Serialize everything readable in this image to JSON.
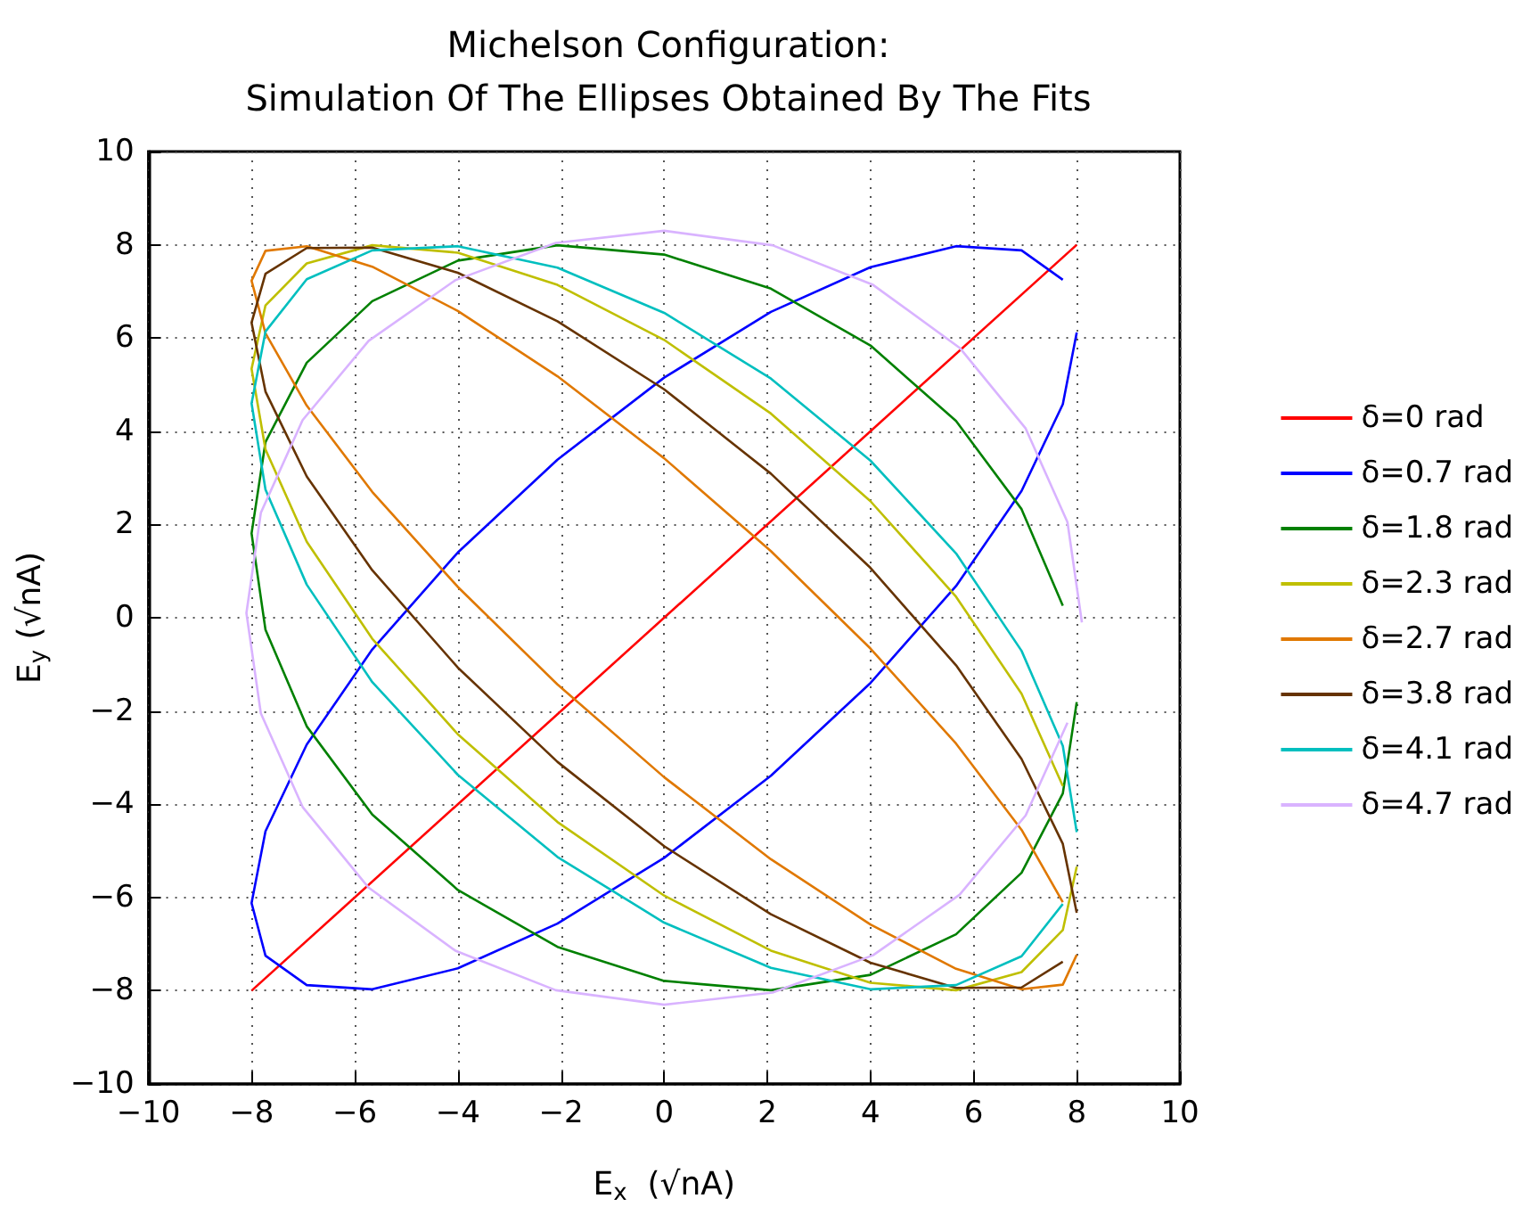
{
  "chart_data": {
    "type": "line",
    "title": "Michelson Configuration:\nSimulation Of The Ellipses Obtained By The Fits",
    "xlabel": "E$_{x}$  (√nA)",
    "ylabel": "E$_{y}$ (√nA)",
    "xlim": [
      -10,
      10
    ],
    "ylim": [
      -10,
      10
    ],
    "xticks": [
      -10,
      -8,
      -6,
      -4,
      -2,
      0,
      2,
      4,
      6,
      8,
      10
    ],
    "yticks": [
      -10,
      -8,
      -6,
      -4,
      -2,
      0,
      2,
      4,
      6,
      8,
      10
    ],
    "grid": true,
    "legend": "right",
    "marker": "none",
    "line_style": "solid",
    "x": [
      8,
      7.73,
      6.93,
      5.66,
      4,
      2.07,
      0,
      -2.07,
      -4,
      -5.66,
      -6.93,
      -7.73,
      -8,
      -7.73,
      -6.93,
      -5.66,
      -4,
      -2.07,
      0,
      2.07,
      4,
      5.66,
      6.93,
      7.73
    ],
    "series": [
      {
        "name": "δ=0 rad",
        "color": "#ff0000",
        "x": [
          -8,
          8
        ],
        "values": [
          -8,
          8
        ]
      },
      {
        "name": "δ=0.7 rad",
        "color": "#0000ff",
        "values": [
          6.12,
          4.58,
          2.72,
          0.68,
          -1.4,
          -3.39,
          -5.15,
          -6.56,
          -7.52,
          -7.97,
          -7.88,
          -7.25,
          -6.12,
          -4.58,
          -2.72,
          -0.68,
          1.4,
          3.39,
          5.15,
          6.56,
          7.52,
          7.97,
          7.88,
          7.25
        ]
      },
      {
        "name": "δ=1.8 rad",
        "color": "#008000",
        "values": [
          -1.81,
          -3.77,
          -5.47,
          -6.79,
          -7.66,
          -7.99,
          -7.79,
          -7.06,
          -5.84,
          -4.22,
          -2.33,
          -0.26,
          1.81,
          3.77,
          5.47,
          6.79,
          7.66,
          7.99,
          7.79,
          7.06,
          5.84,
          4.22,
          2.33,
          0.26
        ]
      },
      {
        "name": "δ=2.3 rad",
        "color": "#bfbf00",
        "values": [
          -5.34,
          -6.7,
          -7.6,
          -7.99,
          -7.83,
          -7.14,
          -5.96,
          -4.38,
          -2.5,
          -0.45,
          1.63,
          3.61,
          5.34,
          6.7,
          7.6,
          7.99,
          7.83,
          7.14,
          5.96,
          4.38,
          2.5,
          0.45,
          -1.63,
          -3.61
        ]
      },
      {
        "name": "δ=2.7 rad",
        "color": "#e07800",
        "values": [
          -7.23,
          -7.87,
          -7.97,
          -7.53,
          -6.58,
          -5.18,
          -3.42,
          -1.43,
          0.66,
          2.7,
          4.55,
          6.1,
          7.23,
          7.87,
          7.97,
          7.53,
          6.58,
          5.18,
          3.42,
          1.43,
          -0.66,
          -2.7,
          -4.55,
          -6.1
        ]
      },
      {
        "name": "δ=3.8 rad",
        "color": "#663300",
        "values": [
          -6.33,
          -4.85,
          -3.03,
          -1.02,
          1.07,
          3.09,
          4.9,
          6.36,
          7.4,
          7.94,
          7.93,
          7.38,
          6.33,
          4.85,
          3.03,
          1.02,
          -1.07,
          -3.09,
          -4.9,
          -6.36,
          -7.4,
          -7.94,
          -7.93,
          -7.38
        ]
      },
      {
        "name": "δ=4.1 rad",
        "color": "#00bfbf",
        "values": [
          -4.6,
          -2.75,
          -0.71,
          1.38,
          3.37,
          5.13,
          6.54,
          7.51,
          7.97,
          7.88,
          7.26,
          6.14,
          4.6,
          2.75,
          0.71,
          -1.38,
          -3.37,
          -5.13,
          -6.54,
          -7.51,
          -7.97,
          -7.88,
          -7.26,
          -6.14
        ]
      },
      {
        "name": "δ=4.7 rad",
        "color": "#d9b3ff",
        "x": [
          8.1,
          7.82,
          7.01,
          5.73,
          4.05,
          2.1,
          0,
          -2.1,
          -4.05,
          -5.73,
          -7.01,
          -7.82,
          -8.1,
          -7.82,
          -7.01,
          -5.73,
          -4.05,
          -2.1,
          0,
          2.1,
          4.05,
          5.73,
          7.01,
          7.82
        ],
        "values": [
          -0.1,
          2.05,
          4.06,
          5.79,
          7.14,
          7.99,
          8.3,
          8.04,
          7.24,
          5.94,
          4.24,
          2.25,
          0.1,
          -2.05,
          -4.06,
          -5.79,
          -7.14,
          -7.99,
          -8.3,
          -8.04,
          -7.24,
          -5.94,
          -4.24,
          -2.25
        ]
      }
    ]
  }
}
